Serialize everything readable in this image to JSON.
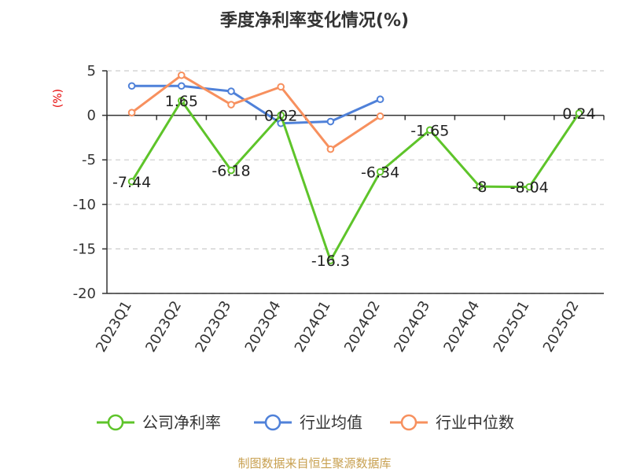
{
  "chart_data": {
    "type": "line",
    "title": "季度净利率变化情况(%)",
    "ylabel": "(%)",
    "xlabel": "",
    "categories": [
      "2023Q1",
      "2023Q2",
      "2023Q3",
      "2023Q4",
      "2024Q1",
      "2024Q2",
      "2024Q3",
      "2024Q4",
      "2025Q1",
      "2025Q2"
    ],
    "ylim": [
      -20,
      5
    ],
    "yticks": [
      5,
      0,
      -5,
      -10,
      -15,
      -20
    ],
    "grid": true,
    "legend_position": "bottom",
    "series": [
      {
        "name": "公司净利率",
        "color": "#5ec42a",
        "values": [
          -7.44,
          1.65,
          -6.18,
          0.02,
          -16.3,
          -6.34,
          -1.65,
          -8,
          -8.04,
          0.24
        ],
        "labels": [
          "-7.44",
          "1.65",
          "-6.18",
          "0.02",
          "-16.3",
          "-6.34",
          "-1.65",
          "-8",
          "-8.04",
          "0.24"
        ]
      },
      {
        "name": "行业均值",
        "color": "#4f81d9",
        "values": [
          3.3,
          3.3,
          2.7,
          -0.9,
          -0.7,
          1.8,
          null,
          null,
          null,
          null
        ]
      },
      {
        "name": "行业中位数",
        "color": "#f7905e",
        "values": [
          0.3,
          4.5,
          1.2,
          3.2,
          -3.8,
          -0.1,
          null,
          null,
          null,
          null
        ]
      }
    ]
  },
  "footer": {
    "source": "制图数据来自恒生聚源数据库"
  }
}
